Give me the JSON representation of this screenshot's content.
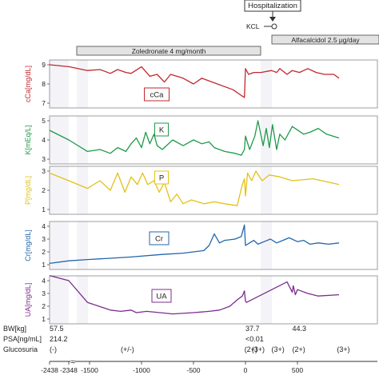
{
  "timeline": {
    "hospitalization": "Hospitalization",
    "kcl": "KCL",
    "zoledronate": "Zoledronate 4 mg/month",
    "alfacalcidol": "Alfacalcidol 2.5 μg/day"
  },
  "chart_data": [
    {
      "type": "line",
      "ylabel": "cCa[mg/dL]",
      "inset_label": "cCa",
      "color": "#c0282e",
      "ylim": [
        7,
        9
      ],
      "yticks": [
        7,
        8,
        9
      ],
      "x": [
        -2438,
        -2348,
        -1520,
        -1400,
        -1300,
        -1230,
        -1150,
        -1100,
        -1000,
        -920,
        -850,
        -780,
        -720,
        -600,
        -500,
        -420,
        -320,
        -120,
        -40,
        -10,
        0,
        30,
        80,
        150,
        250,
        300,
        330,
        400,
        450,
        520,
        560,
        600,
        680,
        760,
        850,
        900
      ],
      "values": [
        9.0,
        8.9,
        8.7,
        8.75,
        8.55,
        8.75,
        8.6,
        8.55,
        8.9,
        8.4,
        8.5,
        8.1,
        8.5,
        8.3,
        8.0,
        8.3,
        8.1,
        7.7,
        7.4,
        7.3,
        8.8,
        8.5,
        8.6,
        8.6,
        8.7,
        8.6,
        8.8,
        8.5,
        8.7,
        8.6,
        8.7,
        8.8,
        8.6,
        8.5,
        8.5,
        8.3
      ]
    },
    {
      "type": "line",
      "ylabel": "K[mEq/L]",
      "inset_label": "K",
      "color": "#1f9a4a",
      "ylim": [
        3,
        5
      ],
      "yticks": [
        3,
        4,
        5
      ],
      "x": [
        -2438,
        -2348,
        -1520,
        -1400,
        -1300,
        -1230,
        -1150,
        -1100,
        -1050,
        -1000,
        -960,
        -920,
        -880,
        -850,
        -800,
        -700,
        -600,
        -500,
        -420,
        -350,
        -300,
        -200,
        -100,
        -40,
        -10,
        0,
        40,
        90,
        120,
        170,
        200,
        230,
        260,
        300,
        330,
        380,
        450,
        560,
        620,
        700,
        780,
        900
      ],
      "values": [
        4.5,
        4.0,
        3.4,
        3.5,
        3.3,
        3.6,
        3.4,
        3.8,
        4.1,
        3.6,
        4.4,
        3.8,
        4.3,
        3.7,
        3.5,
        4.0,
        3.7,
        4.0,
        3.8,
        3.9,
        3.6,
        3.4,
        3.3,
        3.2,
        3.5,
        4.2,
        3.5,
        4.2,
        5.0,
        3.7,
        4.6,
        3.6,
        4.8,
        3.5,
        4.3,
        4.0,
        4.7,
        4.3,
        4.4,
        4.6,
        4.3,
        4.1
      ]
    },
    {
      "type": "line",
      "ylabel": "P[mg/dL]",
      "inset_label": "P",
      "color": "#e3c11a",
      "ylim": [
        1,
        3
      ],
      "yticks": [
        1,
        2,
        3
      ],
      "x": [
        -2438,
        -2348,
        -1520,
        -1400,
        -1300,
        -1230,
        -1160,
        -1100,
        -1040,
        -990,
        -940,
        -880,
        -830,
        -780,
        -720,
        -660,
        -600,
        -520,
        -400,
        -300,
        -200,
        -80,
        -30,
        -10,
        0,
        20,
        60,
        100,
        160,
        230,
        330,
        450,
        650,
        900
      ],
      "values": [
        2.9,
        2.5,
        2.1,
        2.5,
        2.0,
        2.9,
        1.9,
        2.7,
        2.3,
        2.9,
        2.3,
        2.5,
        1.9,
        2.4,
        1.4,
        1.8,
        1.3,
        1.5,
        1.3,
        1.4,
        1.3,
        1.2,
        2.3,
        2.6,
        1.7,
        2.9,
        2.5,
        3.0,
        2.5,
        2.8,
        2.7,
        2.5,
        2.6,
        2.3
      ]
    },
    {
      "type": "line",
      "ylabel": "Cr[mg/dL]",
      "inset_label": "Cr",
      "color": "#2166ac",
      "ylim": [
        1,
        4
      ],
      "yticks": [
        1,
        2,
        3,
        4
      ],
      "x": [
        -2438,
        -2348,
        -1520,
        -1300,
        -1100,
        -800,
        -600,
        -400,
        -350,
        -300,
        -250,
        -200,
        -100,
        -40,
        -10,
        0,
        40,
        80,
        120,
        180,
        240,
        300,
        360,
        420,
        500,
        560,
        620,
        700,
        800,
        900
      ],
      "values": [
        1.1,
        1.3,
        1.4,
        1.5,
        1.6,
        1.8,
        1.9,
        2.1,
        2.5,
        3.4,
        2.7,
        2.9,
        3.0,
        3.2,
        4.1,
        2.5,
        2.7,
        2.9,
        2.6,
        2.8,
        3.0,
        2.7,
        2.9,
        3.1,
        2.8,
        2.9,
        2.6,
        2.7,
        2.6,
        2.7
      ]
    },
    {
      "type": "line",
      "ylabel": "UA[mg/dL]",
      "inset_label": "UA",
      "color": "#7b2d8e",
      "ylim": [
        1,
        4
      ],
      "yticks": [
        1,
        2,
        3,
        4
      ],
      "x": [
        -2438,
        -2348,
        -1520,
        -1300,
        -1200,
        -1100,
        -1050,
        -950,
        -700,
        -500,
        -350,
        -250,
        -150,
        -80,
        -30,
        -10,
        0,
        10,
        400,
        450,
        460,
        480,
        500,
        600,
        700,
        900
      ],
      "values": [
        4.4,
        4.0,
        2.3,
        1.7,
        1.6,
        1.7,
        1.5,
        1.6,
        1.4,
        1.5,
        1.6,
        1.7,
        2.0,
        2.5,
        2.8,
        3.2,
        2.4,
        2.3,
        3.9,
        3.1,
        3.6,
        2.9,
        3.3,
        3.0,
        2.8,
        2.9
      ]
    }
  ],
  "rows": [
    {
      "label": "BW[kg]",
      "values": [
        {
          "x": -2438,
          "text": "57.5"
        },
        {
          "x": 0,
          "text": "37.7"
        },
        {
          "x": 450,
          "text": "44.3"
        }
      ]
    },
    {
      "label": "PSA[ng/mL]",
      "values": [
        {
          "x": -2438,
          "text": "214.2"
        },
        {
          "x": 0,
          "text": "<0.01"
        }
      ]
    },
    {
      "label": "Glucosuria",
      "values": [
        {
          "x": -2438,
          "text": "(-)"
        },
        {
          "x": -1200,
          "text": "(+/-)"
        },
        {
          "x": -10,
          "text": "(2+)"
        },
        {
          "x": 60,
          "text": "(3+)"
        },
        {
          "x": 250,
          "text": "(3+)"
        },
        {
          "x": 450,
          "text": "(2+)"
        },
        {
          "x": 880,
          "text": "(3+)"
        }
      ]
    }
  ],
  "xaxis": {
    "ticks": [
      -2438,
      -2348,
      -1500,
      -1000,
      -500,
      0,
      500
    ],
    "tick_labels": [
      "-2438",
      "-2348",
      "-1500",
      "-1000",
      "-500",
      "0",
      "500"
    ]
  }
}
